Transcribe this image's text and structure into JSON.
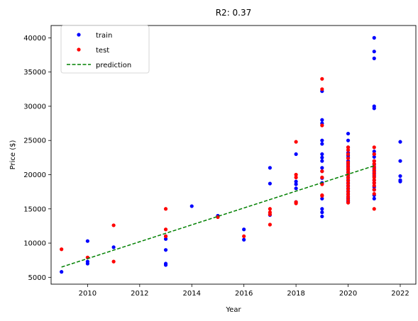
{
  "chart_data": {
    "type": "scatter",
    "title": "R2: 0.37",
    "xlabel": "Year",
    "ylabel": "Price ($)",
    "xlim": [
      2008.6,
      2022.6
    ],
    "ylim": [
      4000,
      41800
    ],
    "xticks": [
      2010,
      2012,
      2014,
      2016,
      2018,
      2020,
      2022
    ],
    "yticks": [
      5000,
      10000,
      15000,
      20000,
      25000,
      30000,
      35000,
      40000
    ],
    "grid": false,
    "legend_position": "top-left",
    "series": [
      {
        "name": "train",
        "kind": "scatter",
        "color": "#0000ff",
        "points": [
          [
            2009,
            5800
          ],
          [
            2010,
            10300
          ],
          [
            2010,
            7000
          ],
          [
            2010,
            7300
          ],
          [
            2011,
            9400
          ],
          [
            2013,
            10600
          ],
          [
            2013,
            11000
          ],
          [
            2013,
            9000
          ],
          [
            2013,
            7000
          ],
          [
            2013,
            6800
          ],
          [
            2014,
            15400
          ],
          [
            2015,
            14000
          ],
          [
            2016,
            12000
          ],
          [
            2016,
            10500
          ],
          [
            2017,
            21000
          ],
          [
            2017,
            18700
          ],
          [
            2017,
            14100
          ],
          [
            2018,
            23000
          ],
          [
            2018,
            19000
          ],
          [
            2018,
            18600
          ],
          [
            2018,
            18000
          ],
          [
            2018,
            16000
          ],
          [
            2019,
            32200
          ],
          [
            2019,
            28000
          ],
          [
            2019,
            27500
          ],
          [
            2019,
            25000
          ],
          [
            2019,
            24500
          ],
          [
            2019,
            23000
          ],
          [
            2019,
            22500
          ],
          [
            2019,
            22000
          ],
          [
            2019,
            21000
          ],
          [
            2019,
            20500
          ],
          [
            2019,
            19500
          ],
          [
            2019,
            18800
          ],
          [
            2019,
            16500
          ],
          [
            2019,
            15000
          ],
          [
            2019,
            14500
          ],
          [
            2019,
            13900
          ],
          [
            2020,
            26000
          ],
          [
            2020,
            25000
          ],
          [
            2020,
            24000
          ],
          [
            2020,
            23200
          ],
          [
            2020,
            22800
          ],
          [
            2020,
            22500
          ],
          [
            2020,
            22000
          ],
          [
            2020,
            21600
          ],
          [
            2020,
            21200
          ],
          [
            2020,
            20800
          ],
          [
            2020,
            20400
          ],
          [
            2020,
            20000
          ],
          [
            2020,
            19600
          ],
          [
            2020,
            19200
          ],
          [
            2020,
            18800
          ],
          [
            2020,
            18400
          ],
          [
            2020,
            18000
          ],
          [
            2020,
            17600
          ],
          [
            2020,
            17200
          ],
          [
            2020,
            16800
          ],
          [
            2020,
            16500
          ],
          [
            2020,
            16200
          ],
          [
            2020,
            16000
          ],
          [
            2021,
            40000
          ],
          [
            2021,
            38000
          ],
          [
            2021,
            37000
          ],
          [
            2021,
            30000
          ],
          [
            2021,
            29700
          ],
          [
            2021,
            23400
          ],
          [
            2021,
            23000
          ],
          [
            2021,
            22600
          ],
          [
            2021,
            22000
          ],
          [
            2021,
            21500
          ],
          [
            2021,
            21000
          ],
          [
            2021,
            20600
          ],
          [
            2021,
            20200
          ],
          [
            2021,
            19800
          ],
          [
            2021,
            19200
          ],
          [
            2021,
            18800
          ],
          [
            2021,
            18200
          ],
          [
            2021,
            17800
          ],
          [
            2021,
            17000
          ],
          [
            2021,
            16500
          ],
          [
            2022,
            24800
          ],
          [
            2022,
            22000
          ],
          [
            2022,
            19800
          ],
          [
            2022,
            19200
          ],
          [
            2022,
            19000
          ]
        ]
      },
      {
        "name": "test",
        "kind": "scatter",
        "color": "#ff0000",
        "points": [
          [
            2009,
            9100
          ],
          [
            2010,
            7900
          ],
          [
            2011,
            12600
          ],
          [
            2011,
            7300
          ],
          [
            2013,
            15000
          ],
          [
            2013,
            12000
          ],
          [
            2013,
            11000
          ],
          [
            2015,
            13800
          ],
          [
            2016,
            11000
          ],
          [
            2017,
            15000
          ],
          [
            2017,
            14500
          ],
          [
            2017,
            14200
          ],
          [
            2017,
            12700
          ],
          [
            2018,
            24800
          ],
          [
            2018,
            20000
          ],
          [
            2018,
            19600
          ],
          [
            2018,
            16000
          ],
          [
            2018,
            15800
          ],
          [
            2019,
            34000
          ],
          [
            2019,
            32500
          ],
          [
            2019,
            27200
          ],
          [
            2019,
            20500
          ],
          [
            2019,
            19600
          ],
          [
            2019,
            18600
          ],
          [
            2019,
            17000
          ],
          [
            2019,
            16900
          ],
          [
            2020,
            24000
          ],
          [
            2020,
            23600
          ],
          [
            2020,
            23000
          ],
          [
            2020,
            22400
          ],
          [
            2020,
            21800
          ],
          [
            2020,
            21400
          ],
          [
            2020,
            21000
          ],
          [
            2020,
            20700
          ],
          [
            2020,
            20300
          ],
          [
            2020,
            19900
          ],
          [
            2020,
            19500
          ],
          [
            2020,
            19100
          ],
          [
            2020,
            18700
          ],
          [
            2020,
            18300
          ],
          [
            2020,
            17900
          ],
          [
            2020,
            17500
          ],
          [
            2020,
            17100
          ],
          [
            2020,
            16700
          ],
          [
            2020,
            16300
          ],
          [
            2020,
            15900
          ],
          [
            2021,
            24000
          ],
          [
            2021,
            23000
          ],
          [
            2021,
            22000
          ],
          [
            2021,
            21600
          ],
          [
            2021,
            21200
          ],
          [
            2021,
            20800
          ],
          [
            2021,
            20400
          ],
          [
            2021,
            20000
          ],
          [
            2021,
            19600
          ],
          [
            2021,
            19200
          ],
          [
            2021,
            18800
          ],
          [
            2021,
            18400
          ],
          [
            2021,
            17800
          ],
          [
            2021,
            17200
          ],
          [
            2021,
            15000
          ]
        ]
      },
      {
        "name": "prediction",
        "kind": "line",
        "style": "dashed",
        "color": "#008000",
        "points": [
          [
            2009,
            6500
          ],
          [
            2021,
            21300
          ]
        ]
      }
    ]
  }
}
